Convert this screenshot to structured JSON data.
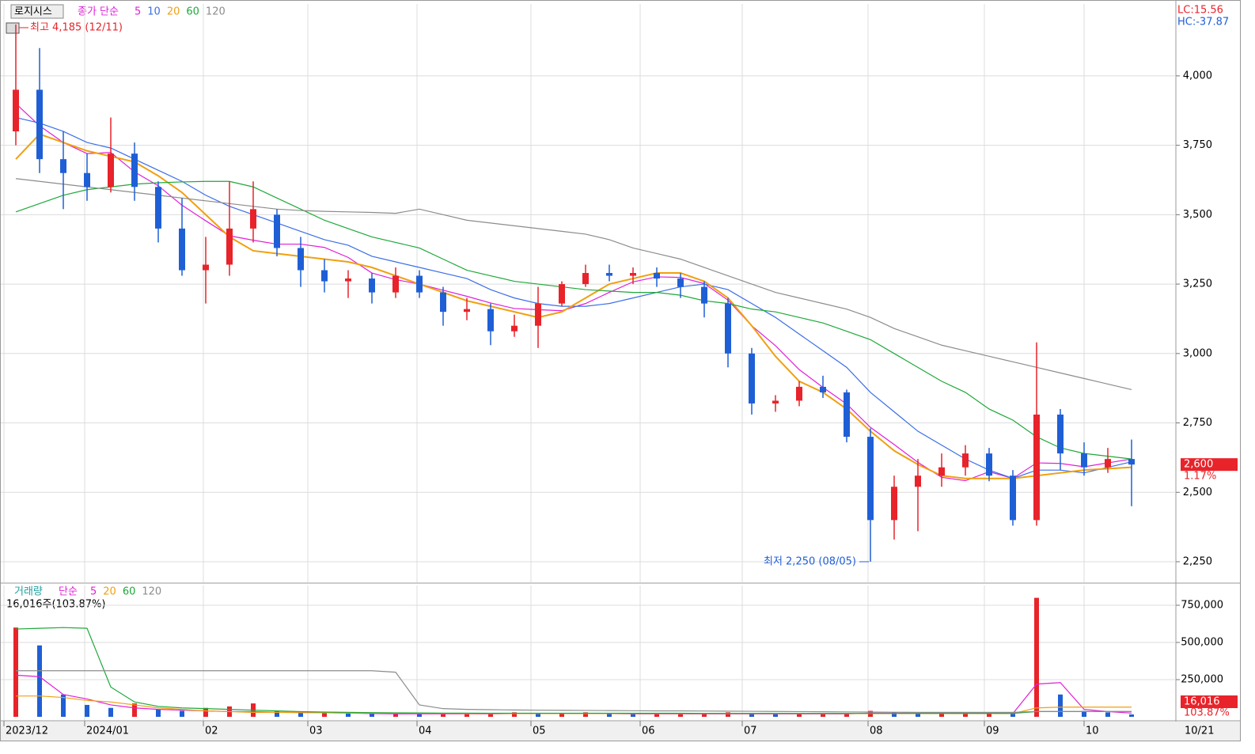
{
  "chart_data": [
    {
      "type": "candlestick",
      "title": "로지시스",
      "ma_label": "종가 단순",
      "open": [
        3800,
        3950,
        3700,
        3650,
        3600,
        3720,
        3600,
        3450,
        3300,
        3320,
        3450,
        3500,
        3380,
        3300,
        3260,
        3270,
        3220,
        3280,
        3220,
        3150,
        3160,
        3080,
        3100,
        3180,
        3250,
        3290,
        3280,
        3290,
        3270,
        3240,
        3180,
        3000,
        2820,
        2830,
        2880,
        2860,
        2700,
        2400,
        2520,
        2560,
        2590,
        2640,
        2560,
        2400,
        2780,
        2640,
        2590,
        2620
      ],
      "high": [
        4185,
        4100,
        3800,
        3720,
        3850,
        3760,
        3620,
        3560,
        3420,
        3620,
        3620,
        3520,
        3420,
        3340,
        3300,
        3290,
        3310,
        3300,
        3240,
        3200,
        3180,
        3140,
        3240,
        3260,
        3320,
        3320,
        3310,
        3310,
        3290,
        3260,
        3200,
        3020,
        2850,
        2900,
        2920,
        2870,
        2730,
        2560,
        2620,
        2640,
        2670,
        2660,
        2580,
        3040,
        2800,
        2680,
        2660,
        2690
      ],
      "low": [
        3750,
        3650,
        3520,
        3550,
        3580,
        3550,
        3400,
        3280,
        3180,
        3280,
        3400,
        3350,
        3240,
        3220,
        3200,
        3180,
        3200,
        3200,
        3100,
        3120,
        3030,
        3060,
        3020,
        3170,
        3240,
        3260,
        3250,
        3240,
        3200,
        3130,
        2950,
        2780,
        2790,
        2810,
        2840,
        2680,
        2250,
        2330,
        2360,
        2520,
        2560,
        2540,
        2380,
        2380,
        2580,
        2560,
        2570,
        2450
      ],
      "close": [
        3950,
        3700,
        3650,
        3600,
        3720,
        3600,
        3450,
        3300,
        3320,
        3450,
        3520,
        3380,
        3300,
        3260,
        3270,
        3220,
        3280,
        3220,
        3150,
        3160,
        3080,
        3100,
        3180,
        3250,
        3290,
        3280,
        3290,
        3270,
        3240,
        3180,
        3000,
        2820,
        2830,
        2880,
        2860,
        2700,
        2400,
        2520,
        2560,
        2590,
        2640,
        2560,
        2400,
        2780,
        2640,
        2590,
        2620,
        2600
      ],
      "up_color": "#e8232a",
      "down_color": "#1f5fd6",
      "series": [
        {
          "name": "5",
          "color": "#e020d8",
          "values": [
            3900,
            3820,
            3760,
            3720,
            3724,
            3654,
            3604,
            3534,
            3478,
            3424,
            3408,
            3394,
            3394,
            3382,
            3346,
            3290,
            3266,
            3250,
            3228,
            3206,
            3182,
            3162,
            3158,
            3154,
            3180,
            3220,
            3258,
            3276,
            3274,
            3252,
            3192,
            3100,
            3028,
            2942,
            2878,
            2818,
            2734,
            2672,
            2608,
            2554,
            2542,
            2574,
            2550,
            2606,
            2604,
            2592,
            2606,
            2620
          ]
        },
        {
          "name": "10",
          "color": "#3a6ee8",
          "values": [
            3850,
            3830,
            3800,
            3760,
            3740,
            3700,
            3660,
            3620,
            3570,
            3530,
            3500,
            3470,
            3440,
            3410,
            3390,
            3350,
            3330,
            3310,
            3290,
            3270,
            3230,
            3200,
            3180,
            3170,
            3170,
            3180,
            3200,
            3220,
            3240,
            3250,
            3230,
            3180,
            3130,
            3070,
            3010,
            2950,
            2860,
            2790,
            2720,
            2670,
            2620,
            2580,
            2550,
            2580,
            2580,
            2570,
            2590,
            2610
          ]
        },
        {
          "name": "20",
          "color": "#f0a010",
          "values": [
            3700,
            3790,
            3760,
            3730,
            3710,
            3690,
            3640,
            3580,
            3500,
            3420,
            3370,
            3360,
            3350,
            3340,
            3330,
            3310,
            3280,
            3250,
            3220,
            3190,
            3170,
            3150,
            3130,
            3150,
            3200,
            3250,
            3270,
            3290,
            3290,
            3260,
            3200,
            3100,
            2990,
            2900,
            2860,
            2800,
            2720,
            2650,
            2600,
            2560,
            2550,
            2550,
            2550,
            2560,
            2570,
            2580,
            2585,
            2590
          ]
        },
        {
          "name": "60",
          "color": "#1fa83a",
          "values": [
            3510,
            3540,
            3570,
            3590,
            3600,
            3610,
            3615,
            3618,
            3620,
            3620,
            3600,
            3560,
            3520,
            3480,
            3450,
            3420,
            3400,
            3380,
            3340,
            3300,
            3280,
            3260,
            3250,
            3240,
            3230,
            3225,
            3220,
            3220,
            3210,
            3190,
            3180,
            3160,
            3150,
            3130,
            3110,
            3080,
            3050,
            3000,
            2950,
            2900,
            2860,
            2800,
            2760,
            2700,
            2660,
            2640,
            2630,
            2620
          ]
        },
        {
          "name": "120",
          "color": "#8c8c8c",
          "values": [
            3630,
            3620,
            3610,
            3600,
            3590,
            3580,
            3570,
            3560,
            3550,
            3540,
            3530,
            3520,
            3515,
            3512,
            3510,
            3508,
            3505,
            3520,
            3500,
            3480,
            3470,
            3460,
            3450,
            3440,
            3430,
            3410,
            3380,
            3360,
            3340,
            3310,
            3280,
            3250,
            3220,
            3200,
            3180,
            3160,
            3130,
            3090,
            3060,
            3030,
            3010,
            2990,
            2970,
            2950,
            2930,
            2910,
            2890,
            2870
          ]
        }
      ],
      "ylim": [
        2173,
        4259
      ],
      "yticks": [
        {
          "value": 2250,
          "label": "2,250"
        },
        {
          "value": 2500,
          "label": "2,500"
        },
        {
          "value": 2750,
          "label": "2,750"
        },
        {
          "value": 3000,
          "label": "3,000"
        },
        {
          "value": 3250,
          "label": "3,250"
        },
        {
          "value": 3500,
          "label": "3,500"
        },
        {
          "value": 3750,
          "label": "3,750"
        },
        {
          "value": 4000,
          "label": "4,000"
        }
      ],
      "high_note": {
        "value": 4185,
        "label": "최고 4,185 (12/11)"
      },
      "low_note": {
        "value": 2250,
        "label": "최저 2,250 (08/05)"
      },
      "lc_label": "LC:15.56",
      "hc_label": "HC:-37.87",
      "last": {
        "value": 2600,
        "label": "2,600"
      },
      "change_label": "1.17%"
    },
    {
      "type": "bar",
      "title": "거래량",
      "ma_label": "단순",
      "info": "16,016주(103.87%)",
      "values": [
        600000,
        480000,
        150000,
        80000,
        60000,
        90000,
        50000,
        40000,
        60000,
        70000,
        90000,
        40000,
        30000,
        30000,
        25000,
        20000,
        25000,
        20000,
        20000,
        20000,
        25000,
        30000,
        25000,
        25000,
        30000,
        25000,
        20000,
        20000,
        20000,
        25000,
        30000,
        25000,
        20000,
        20000,
        20000,
        25000,
        40000,
        30000,
        25000,
        25000,
        25000,
        25000,
        20000,
        800000,
        150000,
        40000,
        30000,
        16016
      ],
      "series": [
        {
          "name": "5",
          "color": "#e020d8",
          "values": [
            280000,
            270000,
            150000,
            120000,
            80000,
            60000,
            50000,
            45000,
            40000,
            35000,
            35000,
            30000,
            30000,
            28000,
            25000,
            22000,
            20000,
            20000,
            20000,
            20000,
            20000,
            22000,
            22000,
            22000,
            22000,
            22000,
            20000,
            20000,
            20000,
            20000,
            20000,
            20000,
            20000,
            20000,
            20000,
            20000,
            25000,
            25000,
            25000,
            25000,
            25000,
            25000,
            22000,
            220000,
            230000,
            50000,
            35000,
            25000
          ]
        },
        {
          "name": "20",
          "color": "#f0a010",
          "values": [
            140000,
            140000,
            130000,
            110000,
            100000,
            80000,
            60000,
            50000,
            40000,
            35000,
            30000,
            30000,
            28000,
            27000,
            25000,
            25000,
            25000,
            24000,
            23000,
            22000,
            22000,
            22000,
            22000,
            22000,
            22000,
            22000,
            22000,
            22000,
            22000,
            22000,
            22000,
            22000,
            22000,
            22000,
            22000,
            22000,
            22000,
            22000,
            22000,
            22000,
            22000,
            22000,
            22000,
            60000,
            65000,
            65000,
            65000,
            65000
          ]
        },
        {
          "name": "60",
          "color": "#1fa83a",
          "values": [
            590000,
            595000,
            600000,
            595000,
            200000,
            100000,
            70000,
            60000,
            55000,
            50000,
            45000,
            40000,
            35000,
            32000,
            30000,
            28000,
            27000,
            26000,
            25000,
            25000,
            24000,
            24000,
            24000,
            24000,
            24000,
            24000,
            24000,
            24000,
            24000,
            23000,
            23000,
            23000,
            23000,
            23000,
            23000,
            23000,
            23000,
            23000,
            23000,
            23000,
            23000,
            23000,
            23000,
            35000,
            35000,
            35000,
            35000,
            35000
          ]
        },
        {
          "name": "120",
          "color": "#8c8c8c",
          "values": [
            310000,
            310000,
            310000,
            310000,
            310000,
            310000,
            310000,
            310000,
            310000,
            310000,
            310000,
            310000,
            310000,
            310000,
            310000,
            310000,
            300000,
            80000,
            55000,
            50000,
            48000,
            46000,
            45000,
            44000,
            43000,
            42000,
            41000,
            40000,
            40000,
            39000,
            38000,
            37000,
            36000,
            35000,
            34000,
            33000,
            32000,
            31000,
            30000,
            30000,
            30000,
            30000,
            30000,
            36000,
            36000,
            36000,
            36000,
            36000
          ]
        }
      ],
      "ylim": [
        0,
        883000
      ],
      "yticks": [
        {
          "value": 250000,
          "label": "250,000"
        },
        {
          "value": 500000,
          "label": "500,000"
        },
        {
          "value": 750000,
          "label": "750,000"
        }
      ],
      "xlim": [
        -0.5,
        47.5
      ],
      "xticks": [
        {
          "value": -0.5,
          "label": "2023/12"
        },
        {
          "value": 2.9,
          "label": "2024/01"
        },
        {
          "value": 7.9,
          "label": "02"
        },
        {
          "value": 12.3,
          "label": "03"
        },
        {
          "value": 16.9,
          "label": "04"
        },
        {
          "value": 21.7,
          "label": "05"
        },
        {
          "value": 26.3,
          "label": "06"
        },
        {
          "value": 30.6,
          "label": "07"
        },
        {
          "value": 35.9,
          "label": "08"
        },
        {
          "value": 40.8,
          "label": "09"
        },
        {
          "value": 45,
          "label": "10"
        }
      ],
      "date_label": "10/21",
      "last": {
        "value": 16016,
        "label": "16,016"
      },
      "pct_label": "103.87%"
    }
  ]
}
